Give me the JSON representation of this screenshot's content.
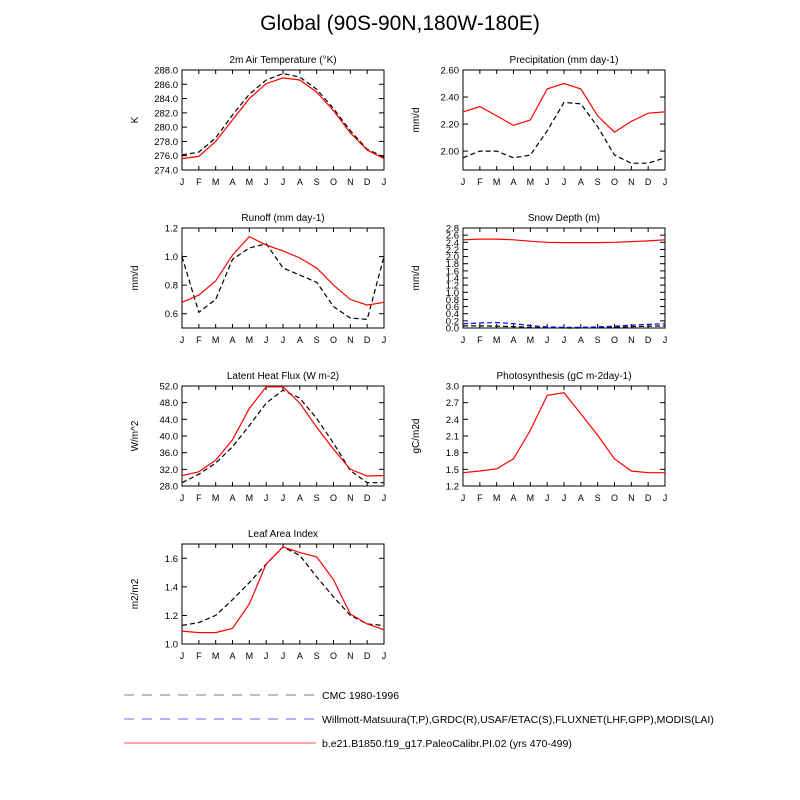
{
  "title": "Global (90S-90N,180W-180E)",
  "months": [
    "J",
    "F",
    "M",
    "A",
    "M",
    "J",
    "J",
    "A",
    "S",
    "O",
    "N",
    "D",
    "J"
  ],
  "colors": {
    "obs": "#000000",
    "obs2": "#0000ff",
    "model": "#ff0000"
  },
  "legend": [
    {
      "label": "CMC 1980-1996",
      "color": "#aaaaaa",
      "dash": "dashed"
    },
    {
      "label": "Willmott-Matsuura(T,P),GRDC(R),USAF/ETAC(S),FLUXNET(LHF,GPP),MODIS(LAI)",
      "color": "#9999ee",
      "dash": "dashed"
    },
    {
      "label": "b.e21.B1850.f19_g17.PaleoCalibr.PI.02 (yrs 470-499)",
      "color": "#ff8888",
      "dash": "solid"
    }
  ],
  "chart_data": [
    {
      "type": "line",
      "title": "2m Air Temperature (°K)",
      "ylabel": "K",
      "ylim": [
        274.0,
        288.0
      ],
      "yticks": [
        "274.0",
        "276.0",
        "278.0",
        "280.0",
        "282.0",
        "284.0",
        "286.0",
        "288.0"
      ],
      "series": [
        {
          "style": "obs",
          "values": [
            276.1,
            276.5,
            278.5,
            281.7,
            284.6,
            286.6,
            287.5,
            287.0,
            285.3,
            282.6,
            279.5,
            276.9,
            275.8
          ]
        },
        {
          "style": "model",
          "values": [
            275.6,
            275.9,
            278.0,
            281.0,
            284.0,
            286.1,
            286.9,
            286.6,
            284.9,
            282.3,
            279.2,
            276.8,
            275.6
          ]
        }
      ]
    },
    {
      "type": "line",
      "title": "Precipitation (mm day-1)",
      "ylabel": "mm/d",
      "ylim": [
        1.86,
        2.6
      ],
      "yticks": [
        "2.00",
        "2.20",
        "2.40",
        "2.60"
      ],
      "series": [
        {
          "style": "obs",
          "values": [
            1.95,
            2.0,
            2.0,
            1.95,
            1.97,
            2.15,
            2.36,
            2.35,
            2.18,
            1.97,
            1.91,
            1.91,
            1.95
          ]
        },
        {
          "style": "model",
          "values": [
            2.29,
            2.33,
            2.26,
            2.19,
            2.23,
            2.46,
            2.5,
            2.46,
            2.26,
            2.14,
            2.22,
            2.28,
            2.29
          ]
        }
      ]
    },
    {
      "type": "line",
      "title": "Runoff (mm day-1)",
      "ylabel": "mm/d",
      "ylim": [
        0.5,
        1.2
      ],
      "yticks": [
        "0.6",
        "0.8",
        "1.0",
        "1.2"
      ],
      "series": [
        {
          "style": "obs",
          "values": [
            1.0,
            0.61,
            0.7,
            0.98,
            1.06,
            1.09,
            0.92,
            0.87,
            0.82,
            0.65,
            0.57,
            0.56,
            1.0
          ]
        },
        {
          "style": "model",
          "values": [
            0.68,
            0.73,
            0.83,
            1.01,
            1.14,
            1.08,
            1.04,
            0.99,
            0.92,
            0.8,
            0.7,
            0.66,
            0.68
          ]
        }
      ]
    },
    {
      "type": "line",
      "title": "Snow Depth (m)",
      "ylabel": "mm/d",
      "ylim": [
        0.0,
        2.8
      ],
      "yticks": [
        "0.0",
        "0.2",
        "0.4",
        "0.6",
        "0.8",
        "1.0",
        "1.2",
        "1.4",
        "1.6",
        "1.8",
        "2.0",
        "2.2",
        "2.4",
        "2.6",
        "2.8"
      ],
      "series": [
        {
          "style": "obs",
          "values": [
            0.06,
            0.06,
            0.05,
            0.04,
            0.02,
            0.01,
            0.0,
            0.0,
            0.01,
            0.02,
            0.04,
            0.05,
            0.06
          ]
        },
        {
          "style": "obs2",
          "values": [
            0.12,
            0.14,
            0.15,
            0.12,
            0.07,
            0.03,
            0.02,
            0.02,
            0.03,
            0.05,
            0.08,
            0.1,
            0.12
          ]
        },
        {
          "style": "model",
          "values": [
            2.47,
            2.49,
            2.49,
            2.47,
            2.43,
            2.4,
            2.39,
            2.39,
            2.39,
            2.4,
            2.42,
            2.44,
            2.47
          ]
        }
      ]
    },
    {
      "type": "line",
      "title": "Latent Heat Flux (W m-2)",
      "ylabel": "W/m^2",
      "ylim": [
        28.0,
        52.0
      ],
      "yticks": [
        "28.0",
        "32.0",
        "36.0",
        "40.0",
        "44.0",
        "48.0",
        "52.0"
      ],
      "series": [
        {
          "style": "obs",
          "values": [
            28.8,
            30.8,
            33.5,
            37.4,
            42.5,
            47.9,
            51.0,
            49.1,
            44.2,
            38.3,
            31.7,
            28.8,
            28.8
          ]
        },
        {
          "style": "model",
          "values": [
            30.5,
            31.4,
            34.2,
            39.1,
            46.6,
            51.8,
            51.8,
            47.9,
            42.1,
            36.8,
            32.0,
            30.4,
            30.5
          ]
        }
      ]
    },
    {
      "type": "line",
      "title": "Photosynthesis (gC m-2day-1)",
      "ylabel": "gC/m2d",
      "ylim": [
        1.2,
        3.0
      ],
      "yticks": [
        "1.2",
        "1.5",
        "1.8",
        "2.1",
        "2.4",
        "2.7",
        "3.0"
      ],
      "series": [
        {
          "style": "model",
          "values": [
            1.44,
            1.47,
            1.51,
            1.69,
            2.2,
            2.83,
            2.88,
            2.5,
            2.11,
            1.69,
            1.47,
            1.44,
            1.44
          ]
        }
      ]
    },
    {
      "type": "line",
      "title": "Leaf Area Index",
      "ylabel": "m2/m2",
      "ylim": [
        1.0,
        1.7
      ],
      "yticks": [
        "1.0",
        "1.2",
        "1.4",
        "1.6"
      ],
      "series": [
        {
          "style": "obs",
          "values": [
            1.13,
            1.15,
            1.2,
            1.31,
            1.43,
            1.56,
            1.68,
            1.62,
            1.47,
            1.33,
            1.2,
            1.14,
            1.13
          ]
        },
        {
          "style": "model",
          "values": [
            1.09,
            1.08,
            1.08,
            1.11,
            1.28,
            1.56,
            1.68,
            1.64,
            1.61,
            1.45,
            1.21,
            1.14,
            1.1
          ]
        }
      ]
    }
  ]
}
